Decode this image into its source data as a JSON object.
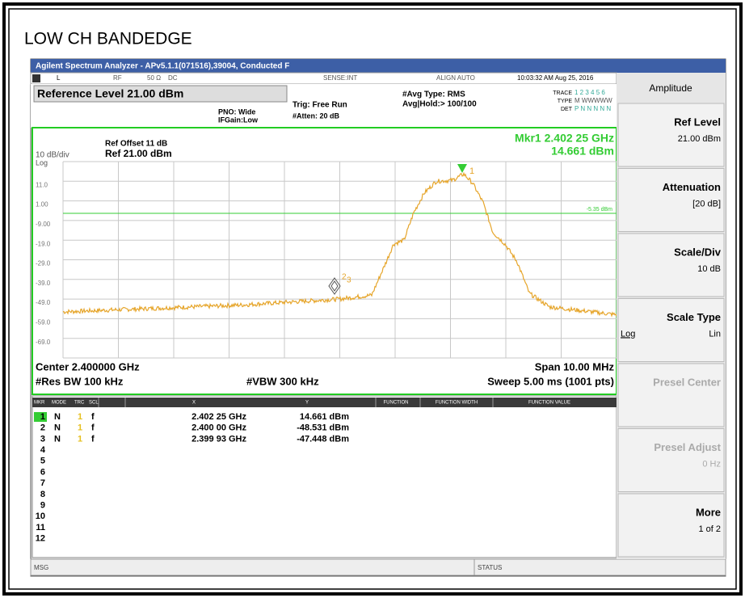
{
  "page_title": "LOW CH BANDEDGE",
  "window_title": "Agilent Spectrum Analyzer - APv5.1.1(071516),39004, Conducted F",
  "status_line": {
    "coupling": "L",
    "input": "RF",
    "impedance": "50 Ω",
    "dc": "DC",
    "sense": "SENSE:INT",
    "align": "ALIGN AUTO",
    "datetime": "10:03:32 AM Aug 25, 2016"
  },
  "settings": {
    "reference_level": "Reference Level 21.00 dBm",
    "pno": "PNO: Wide",
    "ifgain": "IFGain:Low",
    "trig": "Trig: Free Run",
    "atten": "#Atten: 20 dB",
    "avg_type": "#Avg Type: RMS",
    "avg_hold": "Avg|Hold:> 100/100",
    "trace_label": "TRACE",
    "trace_value": "1 2 3 4 5 6",
    "type_label": "TYPE",
    "type_value": "M WWWWW",
    "det_label": "DET",
    "det_value": "P N N N N N"
  },
  "graph": {
    "ref_offset": "Ref Offset 11 dB",
    "scale": "10 dB/div",
    "ref": "Ref 21.00 dBm",
    "log": "Log",
    "marker_freq": "Mkr1 2.402 25 GHz",
    "marker_level": "14.661 dBm",
    "display_line": "-5.35 dBm",
    "y_labels": [
      "11.0",
      "1.00",
      "-9.00",
      "-19.0",
      "-29.0",
      "-39.0",
      "-49.0",
      "-59.0",
      "-69.0"
    ],
    "marker_1": "1",
    "marker_2": "2",
    "marker_3": "3",
    "center": "Center 2.400000 GHz",
    "span": "Span 10.00 MHz",
    "rbw": "#Res BW 100 kHz",
    "vbw": "#VBW 300 kHz",
    "sweep": "Sweep  5.00 ms (1001 pts)"
  },
  "marker_table": {
    "headers": [
      "MKR",
      "MODE",
      "TRC",
      "SCL",
      "X",
      "Y",
      "FUNCTION",
      "FUNCTION WIDTH",
      "FUNCTION VALUE"
    ],
    "rows": [
      [
        "1",
        "N",
        "1",
        "f",
        "2.402 25 GHz",
        "14.661 dBm"
      ],
      [
        "2",
        "N",
        "1",
        "f",
        "2.400 00 GHz",
        "-48.531 dBm"
      ],
      [
        "3",
        "N",
        "1",
        "f",
        "2.399 93 GHz",
        "-47.448 dBm"
      ],
      [
        "4"
      ],
      [
        "5"
      ],
      [
        "6"
      ],
      [
        "7"
      ],
      [
        "8"
      ],
      [
        "9"
      ],
      [
        "10"
      ],
      [
        "11"
      ],
      [
        "12"
      ]
    ]
  },
  "footer": {
    "msg": "MSG",
    "status": "STATUS"
  },
  "softkeys": {
    "menu": "Amplitude",
    "keys": [
      {
        "label": "Ref Level",
        "value": "21.00 dBm"
      },
      {
        "label": "Attenuation",
        "value": "[20 dB]"
      },
      {
        "label": "Scale/Div",
        "value": "10 dB"
      },
      {
        "label": "Scale Type",
        "left": "Log",
        "right": "Lin"
      },
      {
        "label": "Presel Center"
      },
      {
        "label": "Presel Adjust",
        "value": "0 Hz"
      },
      {
        "label": "More",
        "value": "1 of 2"
      }
    ]
  }
}
